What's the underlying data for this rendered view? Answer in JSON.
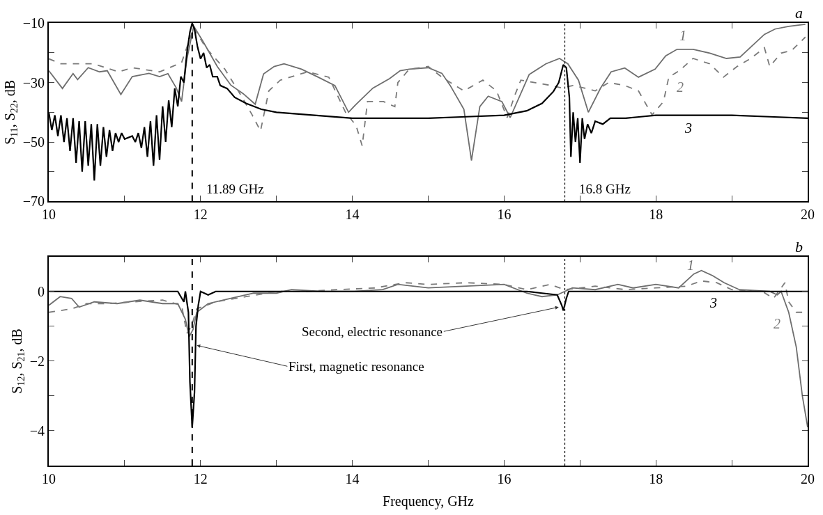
{
  "chart_data": [
    {
      "type": "line",
      "ylabel": "S$_{11}$, S$_{22}$, dB",
      "xlim": [
        10,
        20
      ],
      "ylim": [
        -70,
        -10
      ],
      "xticks": [
        10,
        {
          "value": 11,
          "label": null
        },
        12,
        {
          "value": 13,
          "label": null
        },
        14,
        {
          "value": 15,
          "label": null
        },
        16,
        {
          "value": 17,
          "label": null
        },
        18,
        {
          "value": 19,
          "label": null
        },
        20
      ],
      "yticks": [
        {
          "value": -70,
          "label": "−70"
        },
        {
          "value": -60,
          "label": null
        },
        {
          "value": -50,
          "label": "−50"
        },
        {
          "value": -40,
          "label": null
        },
        {
          "value": -30,
          "label": "−30"
        },
        {
          "value": -20,
          "label": null
        },
        {
          "value": -10,
          "label": "−10"
        }
      ],
      "legend": false,
      "marker": "none",
      "annotations": [
        "a"
      ],
      "ref_lines": [
        {
          "axis": "x",
          "value": 11.89,
          "label": "11.89 GHz",
          "color": "#000000",
          "line_style": "dashed"
        },
        {
          "axis": "x",
          "value": 16.8,
          "label": "16.8 GHz",
          "color": "#000000",
          "line_style": "dotted"
        }
      ],
      "series": [
        {
          "name": "1",
          "color": "#6e6e6e",
          "line_style": "solid",
          "x": [
            10,
            10.18,
            10.32,
            10.38,
            10.52,
            10.67,
            10.77,
            10.95,
            11.1,
            11.32,
            11.46,
            11.57,
            11.68,
            11.75,
            11.82,
            11.91,
            12.04,
            12.22,
            12.4,
            12.56,
            12.72,
            12.83,
            12.97,
            13.1,
            13.33,
            13.55,
            13.77,
            13.95,
            14.05,
            14.27,
            14.49,
            14.63,
            14.75,
            15.0,
            15.18,
            15.29,
            15.47,
            15.57,
            15.68,
            15.79,
            15.97,
            16.08,
            16.33,
            16.55,
            16.73,
            16.84,
            16.98,
            17.11,
            17.27,
            17.41,
            17.59,
            17.77,
            17.99,
            18.13,
            18.28,
            18.49,
            18.71,
            18.93,
            19.11,
            19.43,
            19.57,
            19.75,
            19.97
          ],
          "values": [
            -26,
            -32,
            -27,
            -29,
            -25,
            -26.4,
            -26,
            -34,
            -28,
            -26.9,
            -28,
            -27,
            -31.8,
            -36.4,
            -22,
            -11,
            -16.5,
            -24.6,
            -30.9,
            -33.7,
            -37.3,
            -27.1,
            -24.6,
            -23.7,
            -25.5,
            -28.2,
            -31,
            -40,
            -37.3,
            -31.9,
            -28.7,
            -26,
            -25.5,
            -25,
            -26.9,
            -31,
            -39,
            -56.2,
            -38.1,
            -34.6,
            -36.4,
            -41.8,
            -27.3,
            -23.7,
            -21.9,
            -23.7,
            -29.2,
            -40,
            -31.9,
            -26.4,
            -25.1,
            -28.2,
            -25.5,
            -21,
            -18.8,
            -18.8,
            -20.1,
            -21.9,
            -21.4,
            -13.8,
            -12,
            -11.1,
            -10.4
          ]
        },
        {
          "name": "2",
          "color": "#7a7a7a",
          "line_style": "dashed",
          "x": [
            10,
            10.16,
            10.59,
            10.92,
            11.1,
            11.46,
            11.75,
            11.91,
            12.07,
            12.32,
            12.54,
            12.68,
            12.79,
            12.9,
            13.05,
            13.41,
            13.69,
            13.91,
            14.05,
            14.13,
            14.2,
            14.41,
            14.56,
            14.6,
            14.75,
            15.0,
            15.18,
            15.47,
            15.72,
            15.9,
            16.04,
            16.15,
            16.22,
            16.4,
            16.62,
            16.76,
            16.91,
            17.05,
            17.2,
            17.38,
            17.59,
            17.77,
            17.95,
            18.1,
            18.17,
            18.31,
            18.49,
            18.71,
            18.89,
            19.07,
            19.25,
            19.43,
            19.5,
            19.65,
            19.79,
            19.97
          ],
          "values": [
            -22,
            -23.7,
            -23.7,
            -26.4,
            -25,
            -26.4,
            -23.3,
            -11.5,
            -18.3,
            -25.5,
            -34.6,
            -40.9,
            -46.3,
            -32.8,
            -29.2,
            -26.4,
            -28.2,
            -40,
            -44.5,
            -51.3,
            -36.4,
            -36.4,
            -38.1,
            -30,
            -25.5,
            -24.6,
            -28.2,
            -32.8,
            -29.2,
            -32.8,
            -41.8,
            -33.7,
            -29.2,
            -30,
            -31,
            -31.8,
            -31,
            -31.8,
            -32.8,
            -30,
            -31,
            -32.8,
            -40.9,
            -36.4,
            -28.2,
            -26,
            -21.9,
            -23.7,
            -28.2,
            -24.6,
            -21.9,
            -18.3,
            -24.6,
            -20.1,
            -19.2,
            -14.7
          ]
        },
        {
          "name": "3",
          "color": "#000000",
          "line_style": "solid",
          "x": [
            10,
            10.04,
            10.08,
            10.12,
            10.16,
            10.2,
            10.24,
            10.28,
            10.32,
            10.36,
            10.4,
            10.44,
            10.48,
            10.52,
            10.56,
            10.6,
            10.64,
            10.68,
            10.72,
            10.76,
            10.8,
            10.84,
            10.88,
            10.92,
            10.96,
            11.0,
            11.1,
            11.14,
            11.18,
            11.22,
            11.26,
            11.3,
            11.34,
            11.38,
            11.42,
            11.46,
            11.5,
            11.54,
            11.58,
            11.62,
            11.66,
            11.7,
            11.74,
            11.78,
            11.82,
            11.86,
            11.89,
            11.92,
            11.96,
            12.0,
            12.04,
            12.08,
            12.12,
            12.16,
            12.22,
            12.26,
            12.35,
            12.45,
            12.6,
            12.8,
            13.0,
            13.5,
            14.0,
            14.5,
            15.0,
            15.5,
            16.0,
            16.3,
            16.5,
            16.65,
            16.72,
            16.78,
            16.82,
            16.86,
            16.88,
            16.91,
            16.94,
            16.97,
            17.0,
            17.03,
            17.06,
            17.1,
            17.15,
            17.2,
            17.3,
            17.4,
            17.6,
            17.8,
            18.0,
            18.5,
            19.0,
            19.5,
            20.0
          ],
          "values": [
            -40,
            -46,
            -41,
            -48,
            -41,
            -50,
            -42,
            -53,
            -42,
            -57,
            -43,
            -60,
            -43,
            -58,
            -44,
            -63,
            -44,
            -58,
            -45,
            -55,
            -46,
            -53,
            -47,
            -50,
            -47,
            -49,
            -48,
            -50,
            -47,
            -52,
            -45,
            -55,
            -43,
            -58,
            -41,
            -56,
            -38,
            -50,
            -36,
            -45,
            -32,
            -38,
            -28,
            -30,
            -20,
            -13,
            -10,
            -12,
            -18,
            -22,
            -20,
            -25,
            -24,
            -28,
            -28,
            -31,
            -32,
            -35,
            -37,
            -39,
            -40,
            -41,
            -42,
            -42,
            -42,
            -41.5,
            -41,
            -39.5,
            -37,
            -33,
            -30,
            -24,
            -25,
            -35,
            -55,
            -40,
            -50,
            -42,
            -57,
            -42,
            -49,
            -44,
            -47,
            -43,
            -44,
            -42,
            -42,
            -41.5,
            -41,
            -41,
            -41,
            -41.5,
            -42
          ]
        }
      ]
    },
    {
      "type": "line",
      "xlabel": "Frequency, GHz",
      "ylabel": "S$_{12}$, S$_{21}$, dB",
      "xlim": [
        10,
        20
      ],
      "ylim": [
        -5,
        1
      ],
      "xticks": [
        10,
        {
          "value": 11,
          "label": null
        },
        12,
        {
          "value": 13,
          "label": null
        },
        14,
        {
          "value": 15,
          "label": null
        },
        16,
        {
          "value": 17,
          "label": null
        },
        18,
        {
          "value": 19,
          "label": null
        },
        20
      ],
      "yticks": [
        {
          "value": -4,
          "label": "−4"
        },
        {
          "value": -3,
          "label": null
        },
        {
          "value": -2,
          "label": "−2"
        },
        {
          "value": -1,
          "label": null
        },
        0
      ],
      "legend": false,
      "marker": "none",
      "annotations": [
        "b",
        {
          "text": "Second, electric resonance",
          "x": 16.72,
          "y": -0.45
        },
        {
          "text": "First, magnetic resonance",
          "x": 11.95,
          "y": -1.55
        }
      ],
      "ref_lines": [
        {
          "axis": "x",
          "value": 11.89,
          "color": "#000000",
          "line_style": "dashed"
        },
        {
          "axis": "x",
          "value": 16.8,
          "color": "#000000",
          "line_style": "dotted"
        }
      ],
      "series": [
        {
          "name": "1",
          "color": "#6e6e6e",
          "line_style": "solid",
          "x": [
            10,
            10.15,
            10.3,
            10.4,
            10.6,
            10.9,
            11.2,
            11.5,
            11.7,
            11.8,
            11.85,
            11.9,
            11.95,
            12.1,
            12.4,
            12.7,
            13.0,
            13.2,
            13.6,
            14.0,
            14.4,
            14.6,
            15.0,
            15.5,
            16.0,
            16.3,
            16.5,
            16.7,
            16.9,
            17.2,
            17.5,
            17.7,
            18.0,
            18.3,
            18.5,
            18.6,
            18.75,
            18.9,
            19.1,
            19.5,
            19.6,
            19.65,
            19.75,
            19.85,
            19.93,
            20.0
          ],
          "values": [
            -0.4,
            -0.15,
            -0.2,
            -0.45,
            -0.3,
            -0.35,
            -0.25,
            -0.35,
            -0.35,
            -0.8,
            -1.3,
            -1.1,
            -0.6,
            -0.35,
            -0.2,
            -0.05,
            -0.05,
            0.05,
            0,
            0,
            0.05,
            0.2,
            0.1,
            0.15,
            0.2,
            -0.05,
            -0.15,
            -0.1,
            0.1,
            0.05,
            0.2,
            0.1,
            0.2,
            0.1,
            0.5,
            0.6,
            0.45,
            0.25,
            0.05,
            0,
            -0.1,
            0,
            -0.6,
            -1.6,
            -3,
            -3.9
          ]
        },
        {
          "name": "2",
          "color": "#7a7a7a",
          "line_style": "dashed",
          "x": [
            10,
            10.3,
            10.5,
            10.8,
            11.1,
            11.5,
            11.75,
            11.82,
            11.88,
            11.95,
            12.2,
            12.6,
            13.0,
            13.4,
            13.8,
            14.3,
            14.7,
            15.0,
            15.5,
            16.0,
            16.3,
            16.6,
            16.8,
            17.2,
            17.6,
            18.0,
            18.4,
            18.6,
            18.8,
            19.0,
            19.4,
            19.55,
            19.7,
            19.75,
            19.85,
            20.0
          ],
          "values": [
            -0.6,
            -0.5,
            -0.35,
            -0.35,
            -0.3,
            -0.25,
            -0.4,
            -1.2,
            -1.0,
            -0.5,
            -0.3,
            -0.15,
            0,
            0,
            0.05,
            0.1,
            0.25,
            0.2,
            0.25,
            0.2,
            0.05,
            0.2,
            0.05,
            0.15,
            0.05,
            0.1,
            0.15,
            0.3,
            0.25,
            0.05,
            0,
            -0.2,
            0.25,
            -0.3,
            -0.6,
            -0.6
          ]
        },
        {
          "name": "3",
          "color": "#000000",
          "line_style": "solid",
          "x": [
            10,
            11.7,
            11.78,
            11.8,
            11.84,
            11.86,
            11.89,
            11.92,
            11.94,
            11.97,
            12.0,
            12.1,
            12.2,
            16.3,
            16.5,
            16.7,
            16.76,
            16.78,
            16.82,
            16.85,
            20.0
          ],
          "values": [
            0,
            0,
            -0.3,
            0,
            -0.6,
            -2.6,
            -3.9,
            -2.9,
            -1.0,
            -0.4,
            0,
            -0.1,
            0,
            0,
            -0.05,
            -0.1,
            -0.4,
            -0.55,
            -0.2,
            0,
            0
          ]
        }
      ]
    }
  ]
}
